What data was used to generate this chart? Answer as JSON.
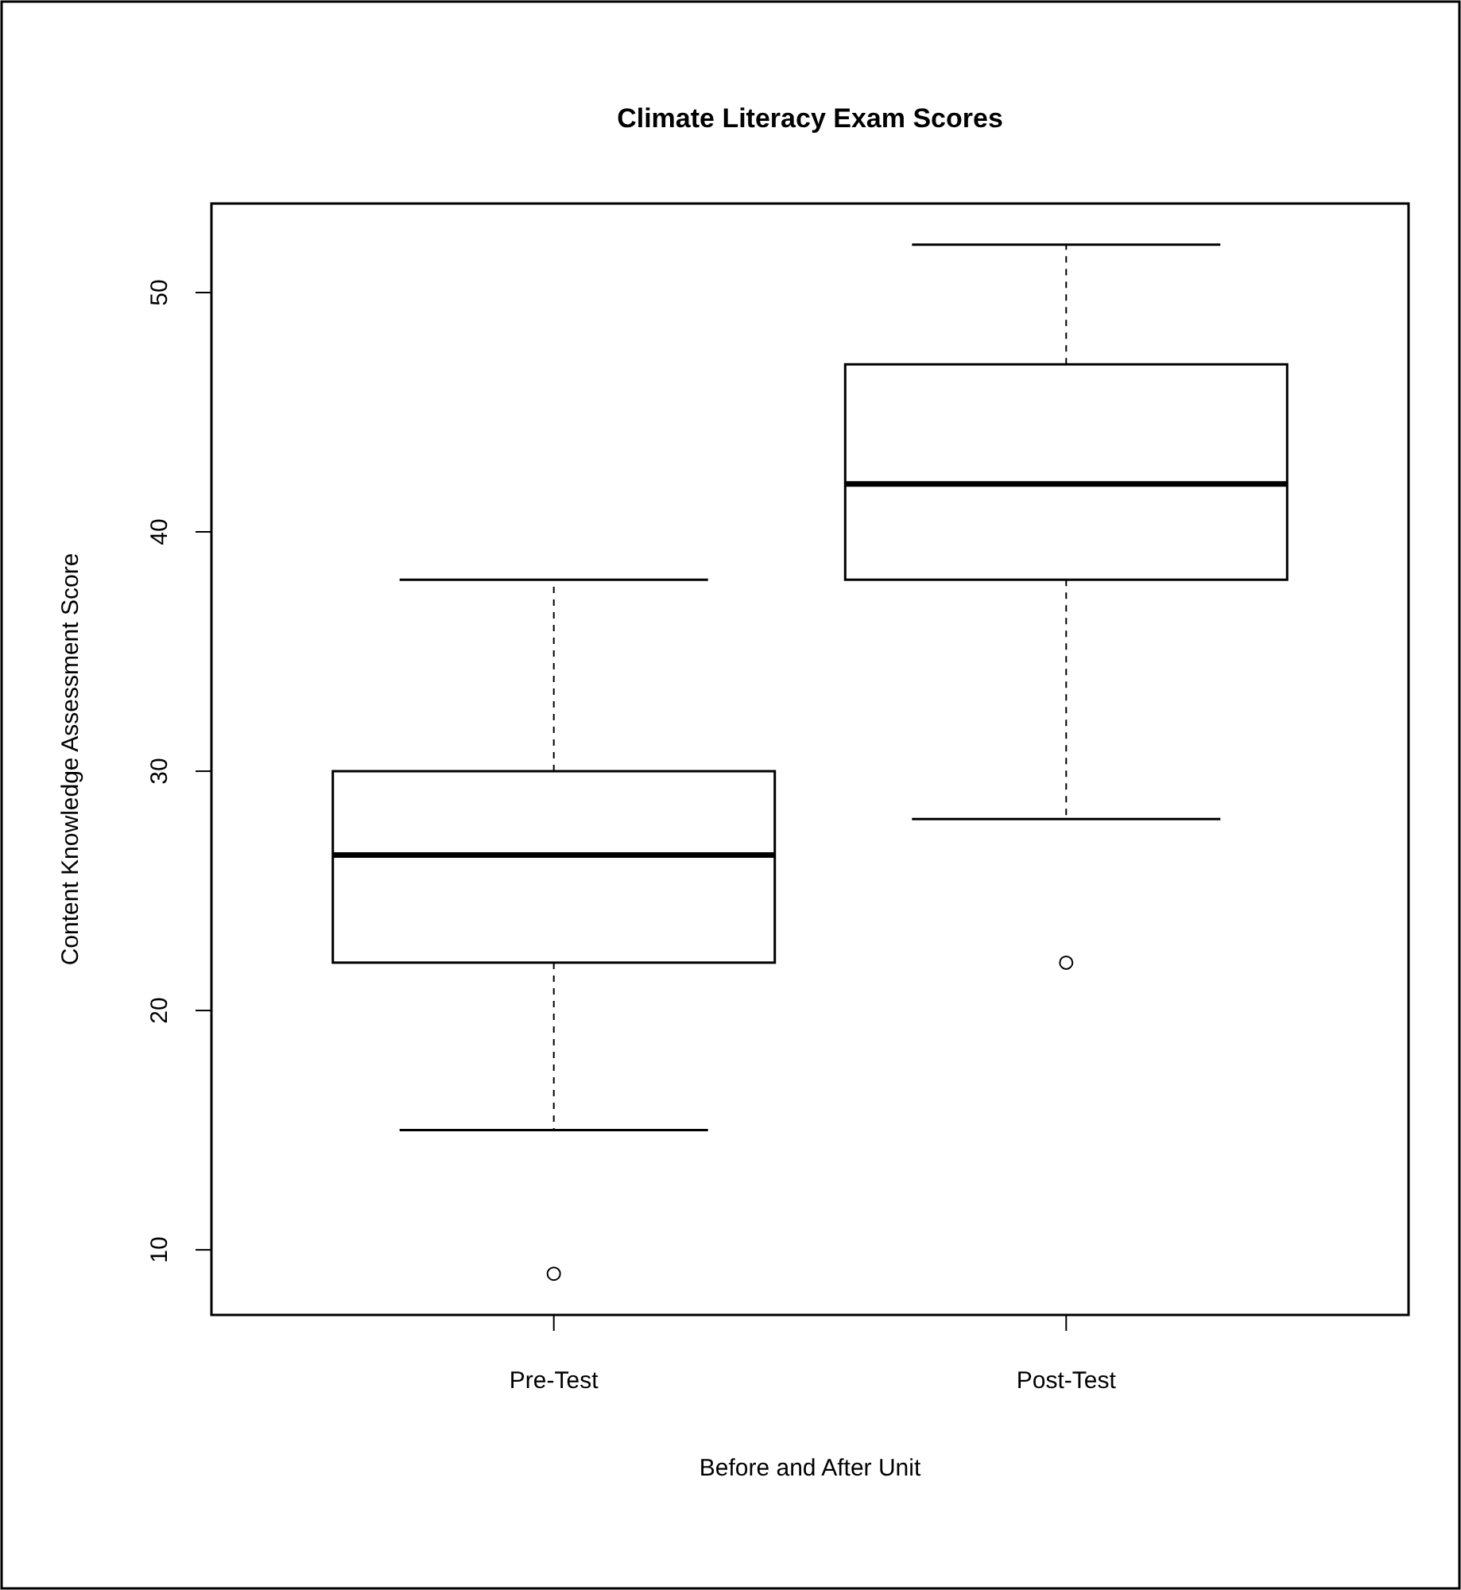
{
  "chart_data": {
    "type": "box",
    "title": "Climate Literacy Exam Scores",
    "xlabel": "Before and After Unit",
    "ylabel": "Content Knowledge Assessment Score",
    "categories": [
      "Pre-Test",
      "Post-Test"
    ],
    "boxes": [
      {
        "low": 15,
        "q1": 22,
        "median": 26.5,
        "q3": 30,
        "high": 38,
        "outliers": [
          9
        ]
      },
      {
        "low": 28,
        "q1": 38,
        "median": 42,
        "q3": 47,
        "high": 52,
        "outliers": [
          22
        ]
      }
    ],
    "ylim": [
      7.28,
      53.72
    ],
    "yticks": [
      10,
      20,
      30,
      40,
      50
    ],
    "marker": "circle"
  }
}
